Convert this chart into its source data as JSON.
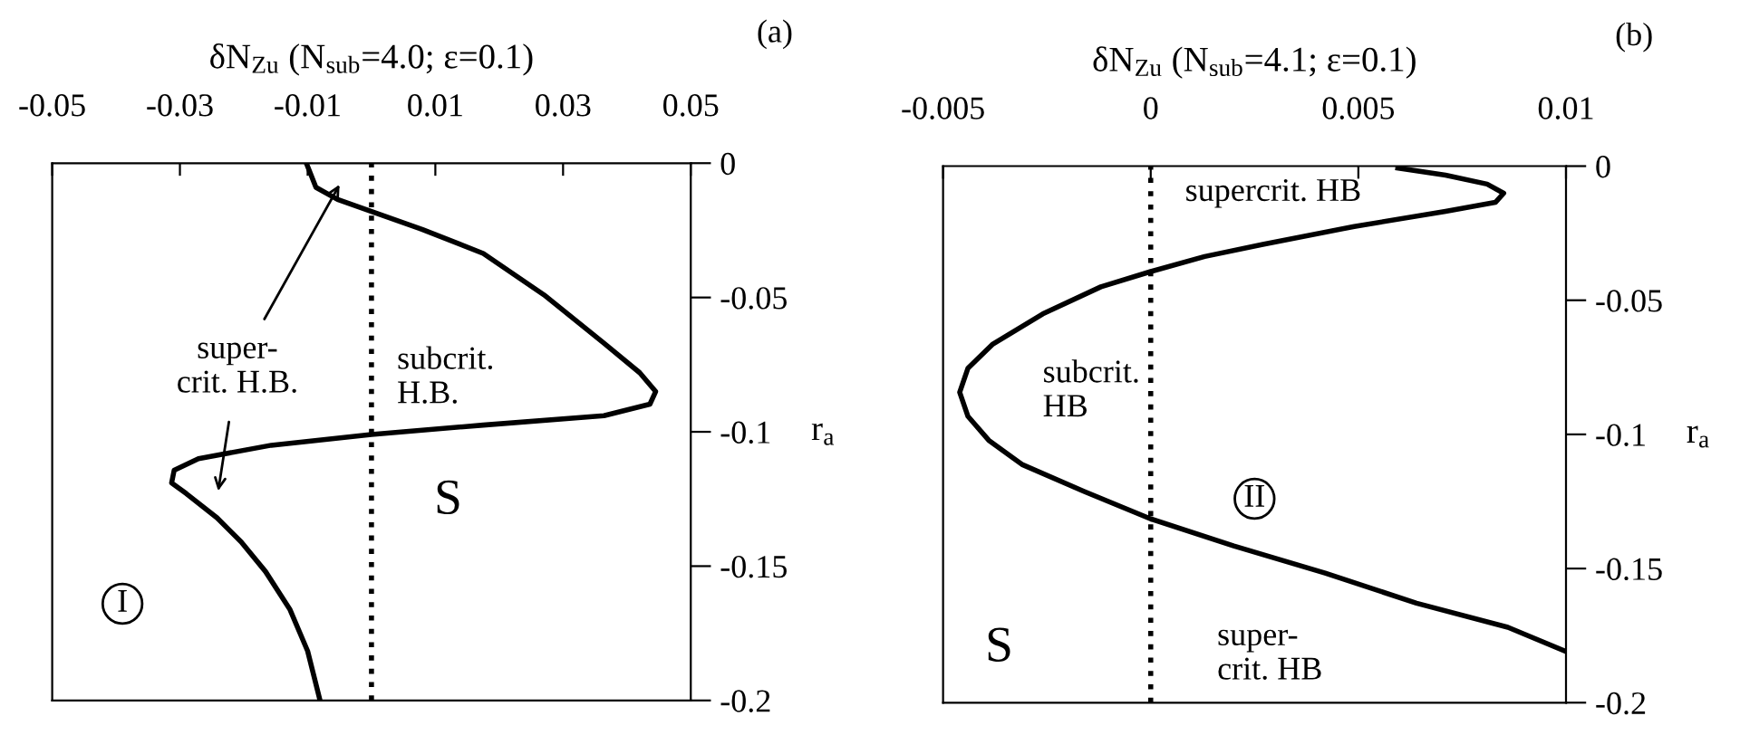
{
  "chart_data": [
    {
      "type": "line",
      "xlabel": "δN$_{Zu}$ (N$_{sub}$=4.0; ε=0.1)",
      "ylabel": "r$_{a}$",
      "xlim": [
        -0.05,
        0.05
      ],
      "xticks": [
        -0.05,
        -0.03,
        -0.01,
        0.01,
        0.03,
        0.05
      ],
      "ylim": [
        -0.2,
        0
      ],
      "yticks": [
        0,
        -0.05,
        -0.1,
        -0.15,
        -0.2
      ],
      "grid": false,
      "line_style": "solid",
      "series": [
        {
          "color": "#000000",
          "x": [
            -0.0102,
            -0.0087,
            -0.0053,
            0.0,
            0.008,
            0.0175,
            0.027,
            0.0364,
            0.042,
            0.0445,
            0.0436,
            0.0364,
            0.0175,
            0.0,
            -0.0157,
            -0.0271,
            -0.0309,
            -0.0313,
            -0.029,
            -0.0242,
            -0.0204,
            -0.0166,
            -0.0128,
            -0.01,
            -0.0081
          ],
          "values": [
            0,
            -0.009,
            -0.0135,
            -0.018,
            -0.0247,
            -0.0336,
            -0.049,
            -0.067,
            -0.078,
            -0.085,
            -0.0897,
            -0.094,
            -0.0975,
            -0.101,
            -0.105,
            -0.11,
            -0.1143,
            -0.119,
            -0.123,
            -0.132,
            -0.141,
            -0.152,
            -0.166,
            -0.1816,
            -0.1996
          ]
        }
      ],
      "ref_lines": [
        {
          "axis": "x",
          "value": 0,
          "color": "#000000",
          "line_style": "dotted"
        }
      ],
      "annotations": [
        "(a)",
        "super-\ncrit. H.B.",
        "subcrit.\nH.B.",
        "S",
        "I"
      ]
    },
    {
      "type": "line",
      "xlabel": "δN$_{Zu}$ (N$_{sub}$=4.1; ε=0.1)",
      "ylabel": "r$_{a}$",
      "xlim": [
        -0.005,
        0.01
      ],
      "xticks": [
        -0.005,
        0,
        0.005,
        0.01
      ],
      "ylim": [
        -0.2,
        0
      ],
      "yticks": [
        0,
        -0.05,
        -0.1,
        -0.15,
        -0.2
      ],
      "grid": false,
      "line_style": "solid",
      "series": [
        {
          "color": "#000000",
          "x": [
            0.00595,
            0.0071,
            0.0081,
            0.0085,
            0.0083,
            0.0071,
            0.0049,
            0.0027,
            0.0013,
            0.0,
            -0.0012,
            -0.0026,
            -0.0038,
            -0.0044,
            -0.0046,
            -0.0044,
            -0.0039,
            -0.0031,
            -0.0016,
            0.0,
            0.002,
            0.0042,
            0.0064,
            0.0086,
            0.01
          ],
          "values": [
            -0.0007,
            -0.0034,
            -0.0067,
            -0.0101,
            -0.0135,
            -0.0169,
            -0.0225,
            -0.0292,
            -0.0337,
            -0.0393,
            -0.045,
            -0.0551,
            -0.0663,
            -0.0753,
            -0.0843,
            -0.0933,
            -0.1022,
            -0.1112,
            -0.1213,
            -0.1315,
            -0.1416,
            -0.1517,
            -0.1629,
            -0.1719,
            -0.1809
          ]
        }
      ],
      "ref_lines": [
        {
          "axis": "x",
          "value": 0,
          "color": "#000000",
          "line_style": "dotted"
        }
      ],
      "annotations": [
        "(b)",
        "supercrit. HB",
        "subcrit.\nHB",
        "II",
        "S",
        "super-\ncrit. HB"
      ]
    }
  ]
}
